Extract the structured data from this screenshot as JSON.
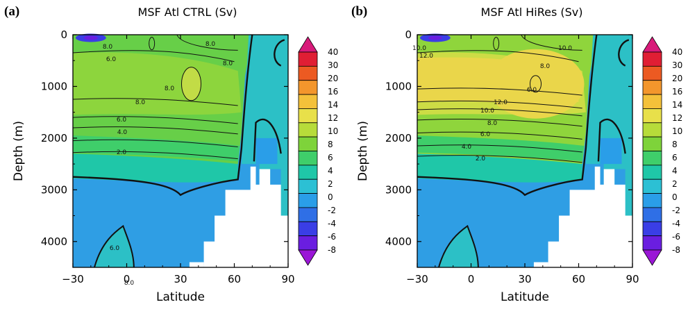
{
  "chart_data": [
    {
      "type": "heatmap",
      "panel_label": "(a)",
      "title": "MSF Atl CTRL (Sv)",
      "xlabel": "Latitude",
      "ylabel": "Depth (m)",
      "xlim": [
        -30,
        90
      ],
      "ylim": [
        4500,
        0
      ],
      "x_ticks": [
        -30,
        0,
        30,
        60,
        90
      ],
      "x_tick_labels": [
        "−30",
        "0",
        "30",
        "60",
        "90"
      ],
      "y_ticks": [
        0,
        1000,
        2000,
        3000,
        4000
      ],
      "y_tick_labels": [
        "0",
        "1000",
        "2000",
        "3000",
        "4000"
      ],
      "colorbar": {
        "levels": [
          -8,
          -6,
          -4,
          -2,
          0,
          2,
          4,
          6,
          8,
          10,
          12,
          14,
          16,
          20,
          30,
          40
        ],
        "labels": [
          "-8",
          "-6",
          "-4",
          "-2",
          "0",
          "2",
          "4",
          "6",
          "8",
          "10",
          "12",
          "14",
          "16",
          "20",
          "30",
          "40"
        ],
        "colors": [
          "#9a16d6",
          "#6a1ee0",
          "#3a3ee6",
          "#2f6fe6",
          "#2a9ee8",
          "#2cc0d4",
          "#1fc7a8",
          "#3fce6a",
          "#7ed33a",
          "#b7dc3a",
          "#e8e04a",
          "#f4c13a",
          "#f3962c",
          "#ec5a22",
          "#e01e34",
          "#d81a7a"
        ],
        "extend": "both"
      },
      "contour_labels": [
        "8.0",
        "6.0",
        "8.0",
        "8.0",
        "8.0",
        "8.0",
        "6.0",
        "4.0",
        "2.0",
        "6.0",
        "8.0"
      ],
      "max_overturning_sv": 10,
      "colors": {
        "nadw": "#67cf48",
        "core": "#8dd53d",
        "peak": "#c2dc46",
        "aabw": "#2f9ee4",
        "bottom": "#2cc0c6"
      }
    },
    {
      "type": "heatmap",
      "panel_label": "(b)",
      "title": "MSF Atl HiRes (Sv)",
      "xlabel": "Latitude",
      "ylabel": "Depth (m)",
      "xlim": [
        -30,
        90
      ],
      "ylim": [
        4500,
        0
      ],
      "x_ticks": [
        -30,
        0,
        30,
        60,
        90
      ],
      "x_tick_labels": [
        "−30",
        "0",
        "30",
        "60",
        "90"
      ],
      "y_ticks": [
        0,
        1000,
        2000,
        3000,
        4000
      ],
      "y_tick_labels": [
        "0",
        "1000",
        "2000",
        "3000",
        "4000"
      ],
      "colorbar": {
        "levels": [
          -8,
          -6,
          -4,
          -2,
          0,
          2,
          4,
          6,
          8,
          10,
          12,
          14,
          16,
          20,
          30,
          40
        ],
        "labels": [
          "-8",
          "-6",
          "-4",
          "-2",
          "0",
          "2",
          "4",
          "6",
          "8",
          "10",
          "12",
          "14",
          "16",
          "20",
          "30",
          "40"
        ],
        "colors": [
          "#9a16d6",
          "#6a1ee0",
          "#3a3ee6",
          "#2f6fe6",
          "#2a9ee8",
          "#2cc0d4",
          "#1fc7a8",
          "#3fce6a",
          "#7ed33a",
          "#b7dc3a",
          "#e8e04a",
          "#f4c13a",
          "#f3962c",
          "#ec5a22",
          "#e01e34",
          "#d81a7a"
        ],
        "extend": "both"
      },
      "contour_labels": [
        "10.0",
        "12.0",
        "10.0",
        "8.0",
        "6.0",
        "12.0",
        "10.0",
        "8.0",
        "6.0",
        "4.0",
        "2.0"
      ],
      "max_overturning_sv": 14,
      "colors": {
        "nadw": "#8fd53c",
        "core": "#cddc45",
        "peak": "#ead64a",
        "aabw": "#2f9ee4",
        "bottom": "#2cc0c6"
      }
    }
  ]
}
